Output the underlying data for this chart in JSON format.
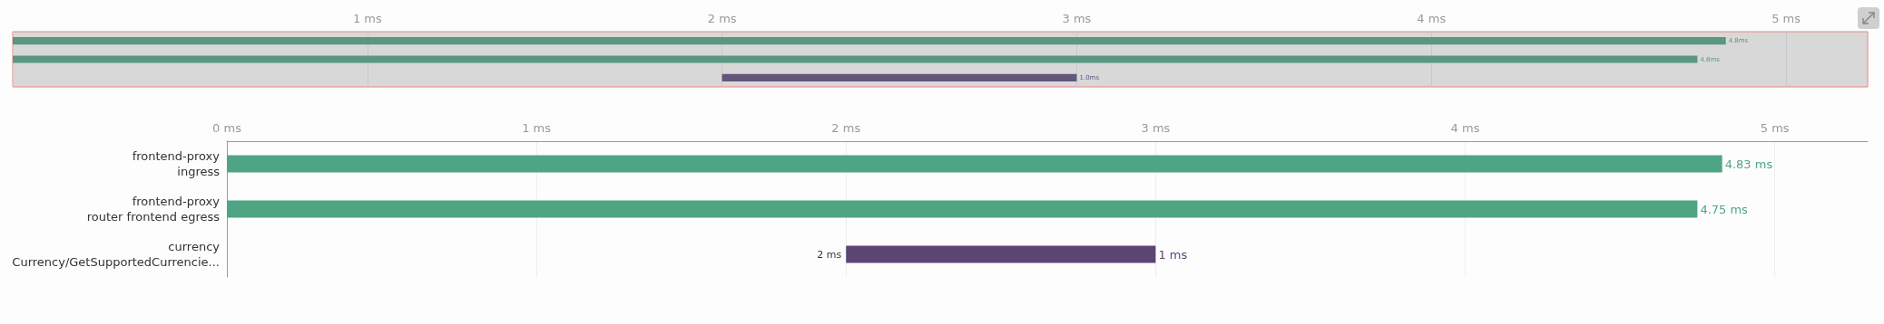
{
  "chart_data": [
    {
      "type": "bar",
      "orientation": "horizontal",
      "categories": [
        null,
        null,
        null
      ],
      "base": [
        0,
        0,
        2
      ],
      "values": [
        4.83,
        4.75,
        1
      ],
      "colors": [
        "#5a9680",
        "#5a9680",
        "#64557a"
      ],
      "value_labels": [
        "4.8ms",
        "4.8ms",
        "1.0ms"
      ],
      "xlim": [
        0,
        5.23
      ],
      "xticks": [
        {
          "value": 0,
          "label": null
        },
        {
          "value": 1,
          "label": "1 ms"
        },
        {
          "value": 2,
          "label": "2 ms"
        },
        {
          "value": 3,
          "label": "3 ms"
        },
        {
          "value": 4,
          "label": "4 ms"
        },
        {
          "value": 5,
          "label": "5 ms"
        }
      ],
      "grid": "x"
    },
    {
      "type": "bar",
      "orientation": "horizontal",
      "categories": [
        "frontend-proxy\ningress",
        "frontend-proxy\nrouter frontend egress",
        "currency\nCurrency/GetSupportedCurrencie..."
      ],
      "base": [
        0,
        0,
        2
      ],
      "values": [
        4.83,
        4.75,
        1
      ],
      "colors": [
        "#4fa583",
        "#4fa583",
        "#5c4473"
      ],
      "value_labels": [
        "4.83 ms",
        "4.75 ms",
        "1 ms"
      ],
      "xlim": [
        0,
        5.3
      ],
      "xticks": [
        {
          "value": 0,
          "label": "0 ms"
        },
        {
          "value": 1,
          "label": "1 ms"
        },
        {
          "value": 2,
          "label": "2 ms"
        },
        {
          "value": 3,
          "label": "3 ms"
        },
        {
          "value": 4,
          "label": "4 ms"
        },
        {
          "value": 5,
          "label": "5 ms"
        }
      ],
      "grid": "x",
      "annotations": [
        {
          "text": "2 ms",
          "x": 2,
          "y": "currency\nCurrency/GetSupportedCurrencie..."
        }
      ]
    }
  ]
}
